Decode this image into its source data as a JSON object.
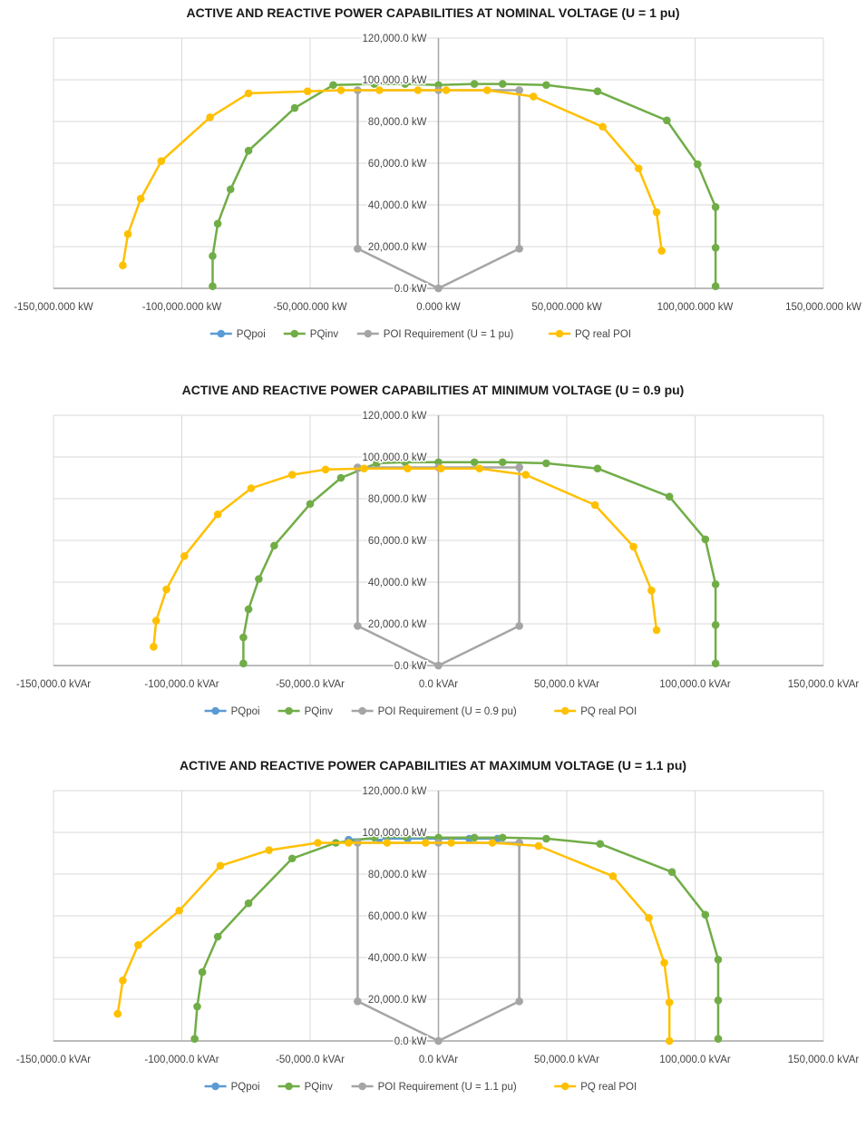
{
  "colors": {
    "PQpoi": "#5b9bd5",
    "PQinv": "#70ad47",
    "POI": "#a5a5a5",
    "PQreal": "#ffc000",
    "grid": "#d9d9d9",
    "axis": "#a6a6a6"
  },
  "chart_data": [
    {
      "type": "scatter",
      "title": "ACTIVE AND REACTIVE POWER CAPABILITIES AT NOMINAL VOLTAGE (U = 1 pu)",
      "xlim": [
        -150000,
        150000
      ],
      "ylim": [
        0,
        120000
      ],
      "x_tick_labels": [
        "-150,000.000 kW",
        "-100,000.000 kW",
        "-50,000.000 kW",
        "0.000 kW",
        "50,000.000 kW",
        "100,000.000 kW",
        "150,000.000 kW"
      ],
      "y_tick_labels": [
        "0.0 kW",
        "20,000.0 kW",
        "40,000.0 kW",
        "60,000.0 kW",
        "80,000.0 kW",
        "100,000.0 kW",
        "120,000.0 kW"
      ],
      "grid": true,
      "legend_position": "bottom",
      "series": [
        {
          "name": "PQpoi",
          "x": [],
          "y": []
        },
        {
          "name": "PQinv",
          "x": [
            -88000,
            -88000,
            -86000,
            -81000,
            -74000,
            -56000,
            -41000,
            -25000,
            -13000,
            0,
            14000,
            25000,
            42000,
            62000,
            89000,
            101000,
            108000,
            108000,
            108000
          ],
          "y": [
            1000,
            15500,
            31000,
            47500,
            66000,
            86500,
            97500,
            98000,
            98000,
            97500,
            98000,
            98000,
            97500,
            94500,
            80500,
            59500,
            39000,
            19500,
            1000
          ]
        },
        {
          "name": "POI Requirement (U = 1 pu)",
          "x": [
            0,
            -31500,
            -31500,
            -31500,
            0,
            31500,
            31500,
            31500,
            0
          ],
          "y": [
            0,
            19000,
            95000,
            95000,
            95000,
            95000,
            95000,
            19000,
            0
          ]
        },
        {
          "name": "PQ real POI",
          "x": [
            -123000,
            -121000,
            -116000,
            -108000,
            -89000,
            -74000,
            -51000,
            -38000,
            -23000,
            -8000,
            3000,
            19000,
            37000,
            64000,
            78000,
            85000,
            87000
          ],
          "y": [
            11000,
            26000,
            43000,
            61000,
            82000,
            93500,
            94500,
            95000,
            95000,
            95000,
            95000,
            95000,
            92000,
            77500,
            57500,
            36500,
            18000
          ]
        }
      ]
    },
    {
      "type": "scatter",
      "title": "ACTIVE AND REACTIVE POWER CAPABILITIES AT MINIMUM VOLTAGE (U = 0.9 pu)",
      "xlim": [
        -150000,
        150000
      ],
      "ylim": [
        0,
        120000
      ],
      "x_tick_labels": [
        "-150,000.0 kVAr",
        "-100,000.0 kVAr",
        "-50,000.0 kVAr",
        "0.0 kVAr",
        "50,000.0 kVAr",
        "100,000.0 kVAr",
        "150,000.0 kVAr"
      ],
      "y_tick_labels": [
        "0.0 kW",
        "20,000.0 kW",
        "40,000.0 kW",
        "60,000.0 kW",
        "80,000.0 kW",
        "100,000.0 kW",
        "120,000.0 kW"
      ],
      "grid": true,
      "legend_position": "bottom",
      "series": [
        {
          "name": "PQpoi",
          "x": [],
          "y": []
        },
        {
          "name": "PQinv",
          "x": [
            -76000,
            -76000,
            -74000,
            -70000,
            -64000,
            -50000,
            -38000,
            -24000,
            -13000,
            0,
            14000,
            25000,
            42000,
            62000,
            90000,
            104000,
            108000,
            108000,
            108000
          ],
          "y": [
            1000,
            13500,
            27000,
            41500,
            57500,
            77500,
            90000,
            97000,
            97500,
            97500,
            97500,
            97500,
            97000,
            94500,
            81000,
            60500,
            39000,
            19500,
            1000
          ]
        },
        {
          "name": "POI Requirement (U = 0.9 pu)",
          "x": [
            0,
            -31500,
            -31500,
            -31500,
            0,
            31500,
            31500,
            31500,
            0
          ],
          "y": [
            0,
            19000,
            95000,
            95000,
            95000,
            95000,
            95000,
            19000,
            0
          ]
        },
        {
          "name": "PQ real POI",
          "x": [
            -111000,
            -110000,
            -106000,
            -99000,
            -86000,
            -73000,
            -57000,
            -44000,
            -29000,
            -12000,
            1000,
            16000,
            34000,
            61000,
            76000,
            83000,
            85000
          ],
          "y": [
            9000,
            21500,
            36500,
            52500,
            72500,
            85000,
            91500,
            94000,
            94500,
            94500,
            94500,
            94500,
            91500,
            77000,
            57000,
            36000,
            17000
          ]
        }
      ]
    },
    {
      "type": "scatter",
      "title": "ACTIVE AND REACTIVE POWER CAPABILITIES AT MAXIMUM VOLTAGE (U = 1.1 pu)",
      "xlim": [
        -150000,
        150000
      ],
      "ylim": [
        0,
        120000
      ],
      "x_tick_labels": [
        "-150,000.0 kVAr",
        "-100,000.0 kVAr",
        "-50,000.0 kVAr",
        "0.0 kVAr",
        "50,000.0 kVAr",
        "100,000.0 kVAr",
        "150,000.0 kVAr"
      ],
      "y_tick_labels": [
        "0.0 kW",
        "20,000.0 kW",
        "40,000.0 kW",
        "60,000.0 kW",
        "80,000.0 kW",
        "100,000.0 kW",
        "120,000.0 kW"
      ],
      "grid": true,
      "legend_position": "bottom",
      "series": [
        {
          "name": "PQpoi",
          "x": [
            -35000,
            -23000,
            -12000,
            0,
            12000,
            23000
          ],
          "y": [
            96500,
            97000,
            97000,
            97000,
            97000,
            97000
          ]
        },
        {
          "name": "PQinv",
          "x": [
            -95000,
            -94000,
            -92000,
            -86000,
            -74000,
            -57000,
            -40000,
            -25000,
            -13000,
            0,
            14000,
            25000,
            42000,
            63000,
            91000,
            104000,
            109000,
            109000,
            109000
          ],
          "y": [
            1000,
            16500,
            33000,
            50000,
            66000,
            87500,
            95000,
            97500,
            98000,
            97500,
            97500,
            97500,
            97000,
            94500,
            81000,
            60500,
            39000,
            19500,
            1000
          ]
        },
        {
          "name": "POI Requirement (U = 1.1 pu)",
          "x": [
            0,
            -31500,
            -31500,
            -31500,
            0,
            31500,
            31500,
            31500,
            0
          ],
          "y": [
            0,
            19000,
            95000,
            95000,
            95000,
            95000,
            95000,
            19000,
            0
          ]
        },
        {
          "name": "PQ real POI",
          "x": [
            -125000,
            -123000,
            -117000,
            -101000,
            -85000,
            -66000,
            -47000,
            -35000,
            -20000,
            -5000,
            5000,
            21000,
            39000,
            68000,
            82000,
            88000,
            90000,
            90000
          ],
          "y": [
            13000,
            29000,
            46000,
            62500,
            84000,
            91500,
            95000,
            95000,
            95000,
            95000,
            95000,
            95000,
            93500,
            79000,
            59000,
            37500,
            18500,
            0
          ]
        }
      ]
    }
  ]
}
